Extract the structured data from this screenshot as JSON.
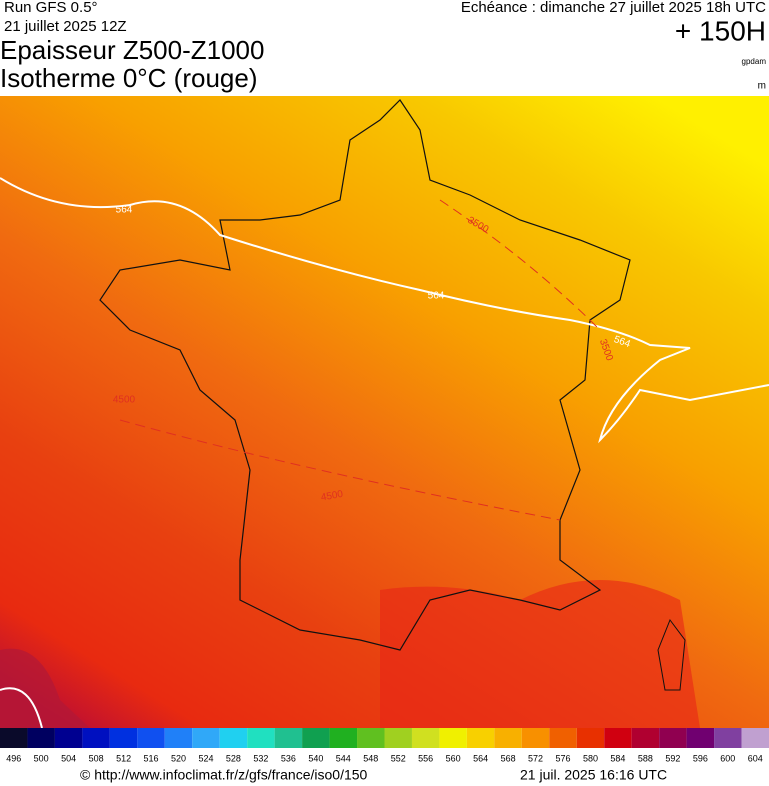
{
  "header": {
    "run": "Run GFS 0.5°",
    "run_date": "21 juillet 2025 12Z",
    "title_1": "Epaisseur Z500-Z1000",
    "title_2": "Isotherme 0°C (rouge)",
    "valid_time": "Echéance : dimanche 27 juillet 2025 18h UTC",
    "lead_time": "+ 150H",
    "unit_1": "gpdam",
    "unit_2": "m"
  },
  "map": {
    "contour_labels": [
      {
        "text": "564",
        "color": "#ffffff"
      },
      {
        "text": "564",
        "color": "#ffffff"
      },
      {
        "text": "564",
        "color": "#ffffff"
      },
      {
        "text": "3500",
        "color": "#e03020"
      },
      {
        "text": "3500",
        "color": "#e03020"
      },
      {
        "text": "4500",
        "color": "#e03020"
      },
      {
        "text": "4500",
        "color": "#e03020"
      }
    ]
  },
  "colorbar": {
    "labels": [
      "496",
      "500",
      "504",
      "508",
      "512",
      "516",
      "520",
      "524",
      "528",
      "532",
      "536",
      "540",
      "544",
      "548",
      "552",
      "556",
      "560",
      "564",
      "568",
      "572",
      "576",
      "580",
      "584",
      "588",
      "592",
      "596",
      "600",
      "604"
    ],
    "colors": [
      "#0a0a2a",
      "#000060",
      "#000090",
      "#0010c0",
      "#0030e0",
      "#1050f0",
      "#2080f8",
      "#30a8f8",
      "#20d0f0",
      "#20e0c0",
      "#20c090",
      "#10a050",
      "#20b020",
      "#60c020",
      "#a0d020",
      "#d0e020",
      "#f0f000",
      "#f8d000",
      "#f8b000",
      "#f89000",
      "#f06000",
      "#e83000",
      "#d00010",
      "#b00030",
      "#900050",
      "#700070",
      "#8040a0",
      "#c0a0d0"
    ]
  },
  "footer": {
    "url": "© http://www.infoclimat.fr/z/gfs/france/iso0/150",
    "generated": "21 juil. 2025 16:16 UTC"
  }
}
